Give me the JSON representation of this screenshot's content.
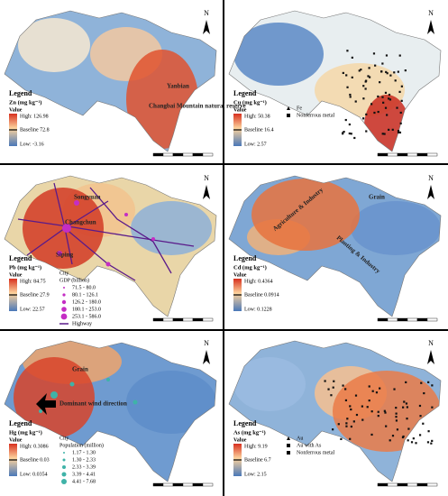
{
  "north": "N",
  "panels": [
    {
      "legend": "Legend",
      "title": "Zn (mg kg⁻¹)",
      "value_label": "Value",
      "high": "High: 126.98",
      "baseline": "Baseline 72.8",
      "low": "Low: -3.16",
      "items": [],
      "labels": [
        "Yanbian",
        "Changbai Mountain natural reserve"
      ]
    },
    {
      "legend": "Legend",
      "title": "Cu (mg kg⁻¹)",
      "value_label": "Value",
      "high": "High: 50.38",
      "baseline": "Baseline 16.4",
      "low": "Low: 2.57",
      "items": [
        "Fe",
        "Nonferrous metal"
      ],
      "labels": []
    },
    {
      "legend": "Legend",
      "title": "Pb (mg kg⁻¹)",
      "value_label": "Value",
      "high": "High: 84.75",
      "baseline": "Baseline 27.9",
      "low": "Low: 22.57",
      "group_title": "City",
      "group_subtitle": "GDP (billion)",
      "items": [
        "71.5 - 80.0",
        "80.1 - 126.1",
        "126.2 - 180.0",
        "180.1 - 253.0",
        "253.1 - 586.0",
        "Highway"
      ],
      "labels": [
        "Songyuan",
        "Changchun",
        "Siping"
      ]
    },
    {
      "legend": "Legend",
      "title": "Cd (mg kg⁻¹)",
      "value_label": "Value",
      "high": "High: 0.4364",
      "baseline": "Baseline 0.0914",
      "low": "Low: 0.1228",
      "items": [],
      "labels": [
        "Grain",
        "Agriculture & Industry",
        "Planting & Industry"
      ]
    },
    {
      "legend": "Legend",
      "title": "Hg (mg kg⁻¹)",
      "value_label": "Value",
      "high": "High: 0.3086",
      "baseline": "Baseline 0.03",
      "low": "Low: 0.0354",
      "group_title": "City",
      "group_subtitle": "Population (million)",
      "items": [
        "1.17 - 1.30",
        "1.30 - 2.33",
        "2.33 - 3.39",
        "3.39 - 4.41",
        "4.41 - 7.68"
      ],
      "labels": [
        "Grain",
        "Dominant wind direction"
      ]
    },
    {
      "legend": "Legend",
      "title": "As (mg kg⁻¹)",
      "value_label": "Value",
      "high": "High: 9.19",
      "baseline": "Baseline 6.7",
      "low": "Low: 2.15",
      "items": [
        "Au",
        "Au with As",
        "Nonferrous metal"
      ],
      "labels": []
    }
  ]
}
